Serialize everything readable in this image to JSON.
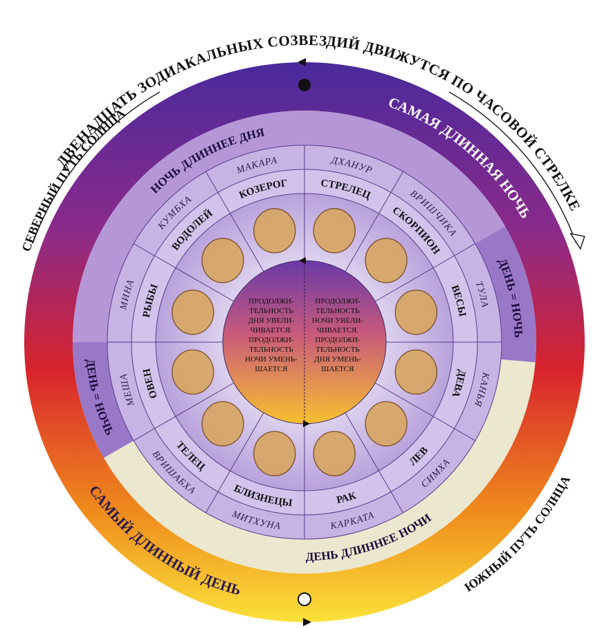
{
  "outer_labels": {
    "top_arc": "ДВЕНАДЦАТЬ ЗОДИАКАЛЬНЫХ СОЗВЕЗДИЙ ДВИЖУТСЯ ПО ЧАСОВОЙ СТРЕЛКЕ",
    "northern_path": "СЕВЕРНЫЙ ПУТЬ СОЛНЦА",
    "southern_path": "ЮЖНЫЙ ПУТЬ СОЛНЦА",
    "longest_night": "САМАЯ ДЛИННАЯ НОЧЬ",
    "longest_day": "САМЫЙ ДЛИННЫЙ ДЕНЬ"
  },
  "day_night_ring": {
    "night_longer": "НОЧЬ ДЛИННЕЕ ДНЯ",
    "day_longer": "ДЕНЬ ДЛИННЕЕ НОЧИ",
    "equinox_right": "ДЕНЬ = НОЧЬ",
    "equinox_left": "ДЕНЬ = НОЧЬ"
  },
  "signs": [
    {
      "name": "СТРЕЛЕЦ",
      "sanskrit": "ДХАНУР"
    },
    {
      "name": "СКОРПИОН",
      "sanskrit": "ВРИШЧИКА"
    },
    {
      "name": "ВЕСЫ",
      "sanskrit": "ТУЛА"
    },
    {
      "name": "ДЕВА",
      "sanskrit": "КАНЬЯ"
    },
    {
      "name": "ЛЕВ",
      "sanskrit": "СИМХА"
    },
    {
      "name": "РАК",
      "sanskrit": "КАРКАТА"
    },
    {
      "name": "БЛИЗНЕЦЫ",
      "sanskrit": "МИТХУНА"
    },
    {
      "name": "ТЕЛЕЦ",
      "sanskrit": "ВРИШАБХА"
    },
    {
      "name": "ОВЕН",
      "sanskrit": "МЕША"
    },
    {
      "name": "РЫБЫ",
      "sanskrit": "МИНА"
    },
    {
      "name": "ВОДОЛЕЙ",
      "sanskrit": "КУМБХА"
    },
    {
      "name": "КОЗЕРОГ",
      "sanskrit": "МАКАРА"
    }
  ],
  "center": {
    "left_lines": [
      "ПРОДОЛЖИ-",
      "ТЕЛЬНОСТЬ",
      "ДНЯ УВЕЛИ-",
      "ЧИВАЕТСЯ.",
      "ПРОДОЛЖИ-",
      "ТЕЛЬНОСТЬ",
      "НОЧИ УМЕНЬ-",
      "ШАЕТСЯ"
    ],
    "right_lines": [
      "ПРОДОЛЖИ-",
      "ТЕЛЬНОСТЬ",
      "НОЧИ УВЕЛИ-",
      "ЧИВАЕТСЯ.",
      "ПРОДОЛЖИ-",
      "ТЕЛЬНОСТЬ",
      "ДНЯ УМЕНЬ-",
      "ШАЕТСЯ"
    ]
  }
}
